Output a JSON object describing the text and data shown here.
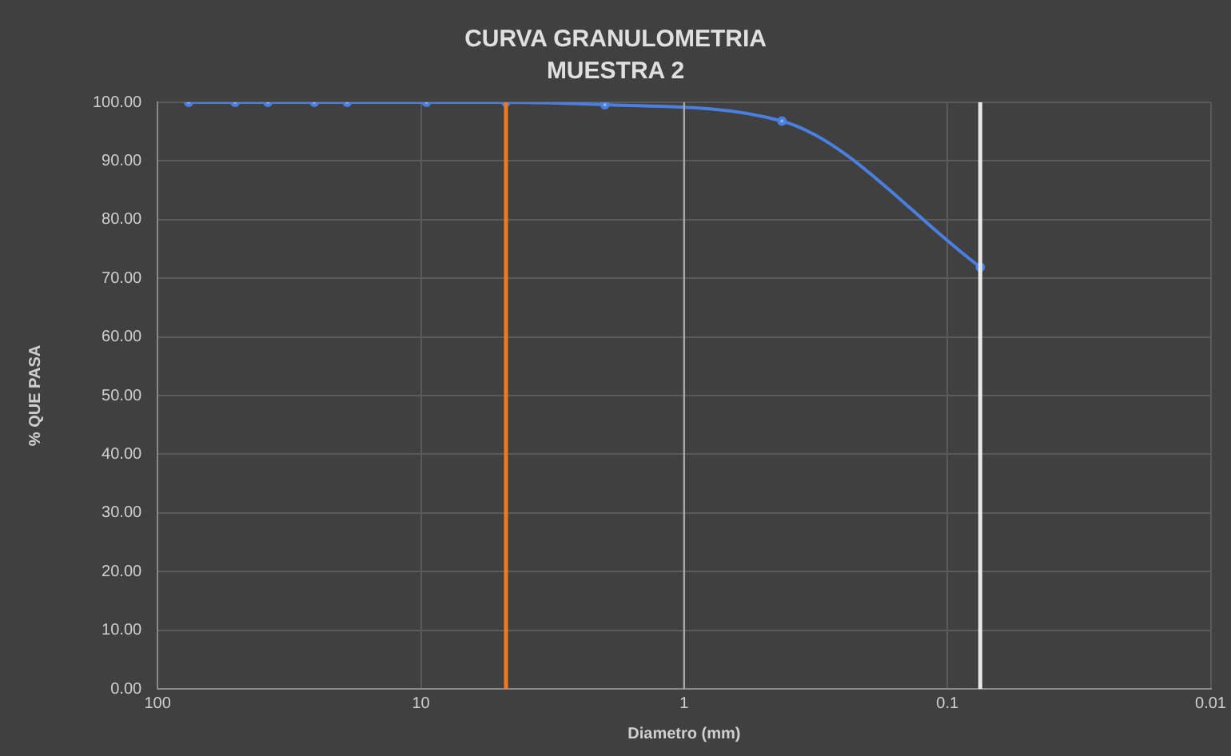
{
  "chart_data": {
    "type": "line",
    "title": "CURVA GRANULOMETRIA",
    "subtitle": "MUESTRA 2",
    "xlabel": "Diametro (mm)",
    "ylabel": "% QUE PASA",
    "x": [
      76.2,
      50.8,
      38.1,
      25.4,
      19.05,
      9.525,
      4.75,
      2,
      0.425,
      0.075
    ],
    "series": [
      {
        "color": "#4a7fe0",
        "values": [
          100,
          100,
          100,
          100,
          100,
          100,
          100,
          99.6,
          96.8,
          71.9
        ]
      }
    ],
    "log": "x",
    "xlim": [
      100,
      0.01
    ],
    "xticks": [
      100,
      10,
      1,
      0.1,
      0.01
    ],
    "ylim": [
      0,
      100
    ],
    "yticks": [
      {
        "value": 0,
        "label": "0.00"
      },
      {
        "value": 10,
        "label": "10.00"
      },
      {
        "value": 20,
        "label": "20.00"
      },
      {
        "value": 30,
        "label": "30.00"
      },
      {
        "value": 40,
        "label": "40.00"
      },
      {
        "value": 50,
        "label": "50.00"
      },
      {
        "value": 60,
        "label": "60.00"
      },
      {
        "value": 70,
        "label": "70.00"
      },
      {
        "value": 80,
        "label": "80.00"
      },
      {
        "value": 90,
        "label": "90.00"
      },
      {
        "value": 100,
        "label": "100.00"
      }
    ],
    "ref_lines": [
      {
        "axis": "x",
        "value": 4.75,
        "color": "#f07820"
      },
      {
        "axis": "x",
        "value": 1,
        "color": "#a8a8a8"
      },
      {
        "axis": "x",
        "value": 0.075,
        "color": "#e8e8e8"
      }
    ],
    "grid": true,
    "marker": "circle",
    "legend": false
  }
}
